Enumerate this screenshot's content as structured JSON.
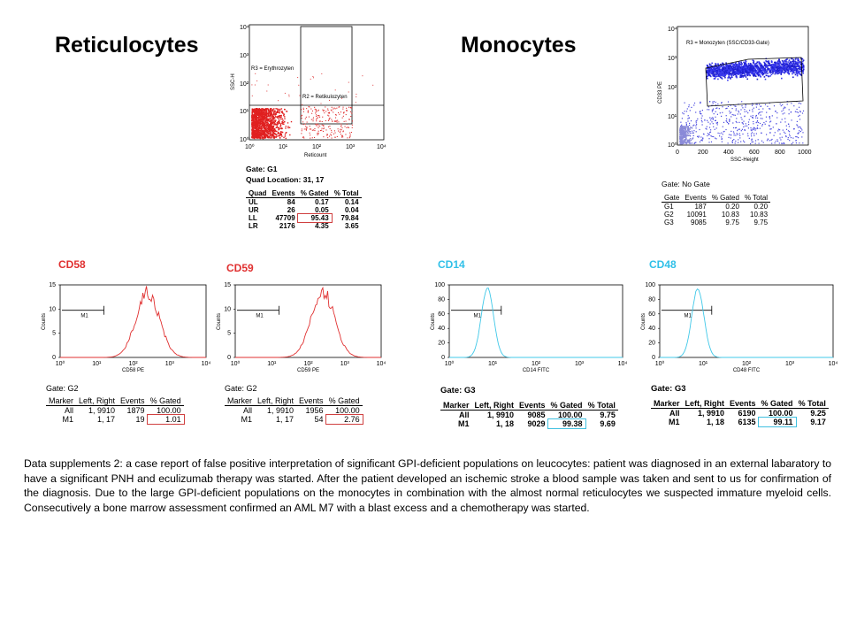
{
  "headings": {
    "reticulocytes": "Reticulocytes",
    "monocytes": "Monocytes"
  },
  "reticulocyte_plot": {
    "y_ticks": [
      "10⁴",
      "10³",
      "10²",
      "10¹",
      "10⁰"
    ],
    "x_ticks": [
      "10⁰",
      "10¹",
      "10²",
      "10³",
      "10⁴"
    ],
    "x_label": "Reticount",
    "y_label": "SSC-H",
    "region_r3": "R3 = Erythrozyten",
    "region_r2": "R2 = Retikulozyten"
  },
  "reticulocyte_stats": {
    "gate": "Gate: G1",
    "quad_location": "Quad Location: 31, 17",
    "headers": [
      "Quad",
      "Events",
      "% Gated",
      "% Total"
    ],
    "rows": [
      [
        "UL",
        "84",
        "0.17",
        "0.14"
      ],
      [
        "UR",
        "26",
        "0.05",
        "0.04"
      ],
      [
        "LL",
        "47709",
        "95.43",
        "79.84"
      ],
      [
        "LR",
        "2176",
        "4.35",
        "3.65"
      ]
    ]
  },
  "monocyte_plot": {
    "y_ticks": [
      "10⁴",
      "10³",
      "10²",
      "10¹",
      "10⁰"
    ],
    "x_ticks": [
      "0",
      "200",
      "400",
      "600",
      "800",
      "1000"
    ],
    "x_label": "SSC-Height",
    "y_label": "CD33 PE",
    "region": "R3 = Monozyten (SSC/CD33-Gate)"
  },
  "monocyte_stats": {
    "gate": "Gate: No Gate",
    "headers": [
      "Gate",
      "Events",
      "% Gated",
      "% Total"
    ],
    "rows": [
      [
        "G1",
        "187",
        "0.20",
        "0.20"
      ],
      [
        "G2",
        "10091",
        "10.83",
        "10.83"
      ],
      [
        "G3",
        "9085",
        "9.75",
        "9.75"
      ]
    ]
  },
  "histograms": [
    {
      "marker": "CD58",
      "marker_color": "#e03030",
      "line_color": "#e03030",
      "y_ticks": [
        "0",
        "5",
        "10",
        "15"
      ],
      "y_label": "Counts",
      "x_ticks": [
        "10⁰",
        "10¹",
        "10²",
        "10³",
        "10⁴"
      ],
      "x_label": "CD58 PE",
      "m1": "M1",
      "stats": {
        "gate": "Gate: G2",
        "headers": [
          "Marker",
          "Left, Right",
          "Events",
          "% Gated"
        ],
        "rows": [
          [
            "All",
            "1,  9910",
            "1879",
            "100.00"
          ],
          [
            "M1",
            "1,   17",
            "19",
            "1.01"
          ]
        ]
      }
    },
    {
      "marker": "CD59",
      "marker_color": "#e03030",
      "line_color": "#e03030",
      "y_ticks": [
        "0",
        "5",
        "10",
        "15"
      ],
      "y_label": "Counts",
      "x_ticks": [
        "10⁰",
        "10¹",
        "10²",
        "10³",
        "10⁴"
      ],
      "x_label": "CD59 PE",
      "m1": "M1",
      "stats": {
        "gate": "Gate: G2",
        "headers": [
          "Marker",
          "Left, Right",
          "Events",
          "% Gated"
        ],
        "rows": [
          [
            "All",
            "1,  9910",
            "1956",
            "100.00"
          ],
          [
            "M1",
            "1,   17",
            "54",
            "2.76"
          ]
        ]
      }
    },
    {
      "marker": "CD14",
      "marker_color": "#30c0e8",
      "line_color": "#40c8e8",
      "y_ticks": [
        "0",
        "20",
        "40",
        "60",
        "80",
        "100"
      ],
      "y_label": "Counts",
      "x_ticks": [
        "10⁰",
        "10¹",
        "10²",
        "10³",
        "10⁴"
      ],
      "x_label": "CD14 FITC",
      "m1": "M1",
      "stats": {
        "gate": "Gate: G3",
        "headers": [
          "Marker",
          "Left, Right",
          "Events",
          "% Gated",
          "% Total"
        ],
        "rows": [
          [
            "All",
            "1,  9910",
            "9085",
            "100.00",
            "9.75"
          ],
          [
            "M1",
            "1,   18",
            "9029",
            "99.38",
            "9.69"
          ]
        ]
      }
    },
    {
      "marker": "CD48",
      "marker_color": "#30c0e8",
      "line_color": "#40c8e8",
      "y_ticks": [
        "0",
        "20",
        "40",
        "60",
        "80",
        "100"
      ],
      "y_label": "Counts",
      "x_ticks": [
        "10⁰",
        "10¹",
        "10²",
        "10³",
        "10⁴"
      ],
      "x_label": "CD48 FITC",
      "m1": "M1",
      "stats": {
        "gate": "Gate: G3",
        "headers": [
          "Marker",
          "Left, Right",
          "Events",
          "% Gated",
          "% Total"
        ],
        "rows": [
          [
            "All",
            "1,  9910",
            "6190",
            "100.00",
            "9.25"
          ],
          [
            "M1",
            "1,   18",
            "6135",
            "99.11",
            "9.17"
          ]
        ]
      }
    }
  ],
  "caption": "Data supplements 2: a case report of false positive interpretation of significant GPI-deficient populations on leucocytes: patient was diagnosed in an external labaratory to have a significant PNH and eculizumab therapy was started. After the patient developed an ischemic stroke a blood sample was taken and sent to us for confirmation of the diagnosis. Due to the large GPI-deficient populations on the monocytes in combination with the almost normal reticulocytes we suspected immature myeloid cells. Consecutively a bone marrow assessment confirmed an AML M7 with a blast excess and a chemotherapy was started."
}
